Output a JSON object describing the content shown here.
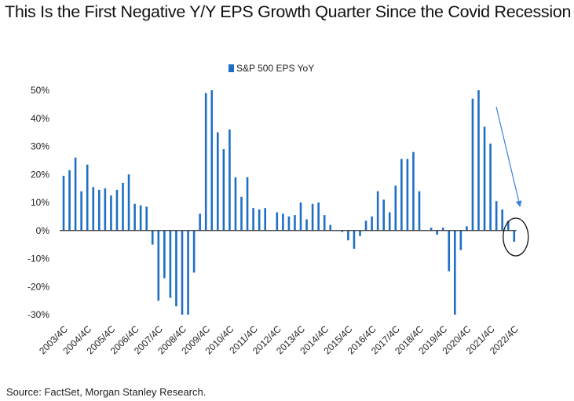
{
  "chart_data": {
    "type": "bar",
    "title": "This Is the First Negative Y/Y EPS Growth Quarter Since the Covid Recession",
    "xlabel": "",
    "ylabel": "",
    "ylim": [
      -30,
      50
    ],
    "yticks": [
      50,
      40,
      30,
      20,
      10,
      0,
      -10,
      -20,
      -30
    ],
    "ytick_labels": [
      "50%",
      "40%",
      "30%",
      "20%",
      "10%",
      "0%",
      "-10%",
      "-20%",
      "-30%"
    ],
    "xtick_labels": [
      "2003/4C",
      "2004/4C",
      "2005/4C",
      "2006/4C",
      "2007/4C",
      "2008/4C",
      "2009/4C",
      "2010/4C",
      "2011/4C",
      "2012/4C",
      "2013/4C",
      "2014/4C",
      "2015/4C",
      "2016/4C",
      "2017/4C",
      "2018/4C",
      "2019/4C",
      "2020/4C",
      "2021/4C",
      "2022/4C"
    ],
    "grid": false,
    "legend": "top-center",
    "series": [
      {
        "name": "S&P 500 EPS YoY",
        "color": "#1f6fc5",
        "x_start": "2003Q4",
        "x_end": "2022Q4",
        "frequency": "quarterly",
        "values": [
          19.5,
          21.5,
          26,
          14,
          23.5,
          15.5,
          14.5,
          15,
          12.5,
          14.5,
          17,
          20,
          9.5,
          9,
          8.5,
          -5,
          -25,
          -17,
          -24,
          -27,
          -30,
          -30,
          -15,
          6,
          49,
          50,
          35,
          29,
          36,
          19,
          12,
          19,
          8,
          7.5,
          8,
          0,
          6.5,
          6,
          5,
          5.5,
          10,
          4,
          9.5,
          10,
          5.5,
          2,
          0,
          -0.5,
          -3.5,
          -6.5,
          -2,
          3.5,
          5,
          14,
          11,
          6.5,
          16,
          25.5,
          25.5,
          28,
          14,
          0,
          1,
          -1.5,
          1,
          -14.5,
          -30,
          -7,
          1.5,
          47,
          50,
          37,
          31,
          10.5,
          7.5,
          3.5,
          -4
        ]
      }
    ],
    "annotations": [
      {
        "type": "arrow",
        "description": "blue arrow pointing down to latest quarter"
      },
      {
        "type": "circle",
        "description": "black ellipse highlighting 2022/4C negative bar"
      }
    ]
  },
  "source": "Source: FactSet, Morgan Stanley Research."
}
